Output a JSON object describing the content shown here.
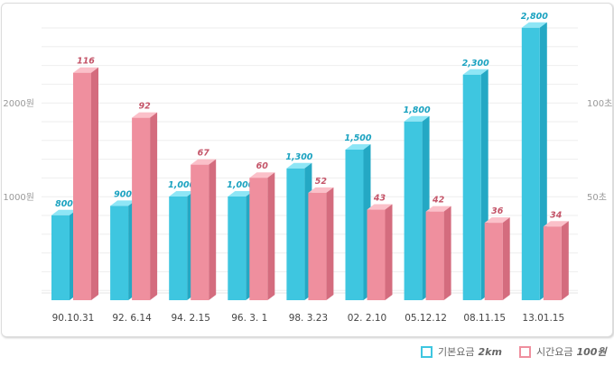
{
  "chart_data": {
    "type": "bar",
    "categories": [
      "90.10.31",
      "92. 6.14",
      "94. 2.15",
      "96. 3. 1",
      "98. 3.23",
      "02. 2.10",
      "05.12.12",
      "08.11.15",
      "13.01.15"
    ],
    "series": [
      {
        "name": "기본요금",
        "unit": "2km",
        "axis": "left",
        "color": "#3ec6e0",
        "values": [
          800,
          900,
          1000,
          1000,
          1300,
          1500,
          1800,
          2300,
          2800
        ],
        "labels": [
          "800",
          "900",
          "1,000",
          "1,000",
          "1,300",
          "1,500",
          "1,800",
          "2,300",
          "2,800"
        ]
      },
      {
        "name": "시간요금",
        "unit": "100원",
        "axis": "right",
        "color": "#ef8f9e",
        "values": [
          116,
          92,
          67,
          60,
          52,
          43,
          42,
          36,
          34
        ],
        "labels": [
          "116",
          "92",
          "67",
          "60",
          "52",
          "43",
          "42",
          "36",
          "34"
        ]
      }
    ],
    "left_axis": {
      "ticks": [
        {
          "value": 1000,
          "label": "1000원"
        },
        {
          "value": 2000,
          "label": "2000원"
        }
      ],
      "ylim": [
        0,
        3000
      ]
    },
    "right_axis": {
      "ticks": [
        {
          "value": 50,
          "label": "50초"
        },
        {
          "value": 100,
          "label": "100초"
        }
      ],
      "ylim": [
        0,
        150
      ]
    },
    "grid": true,
    "legend": "bottom-right"
  }
}
